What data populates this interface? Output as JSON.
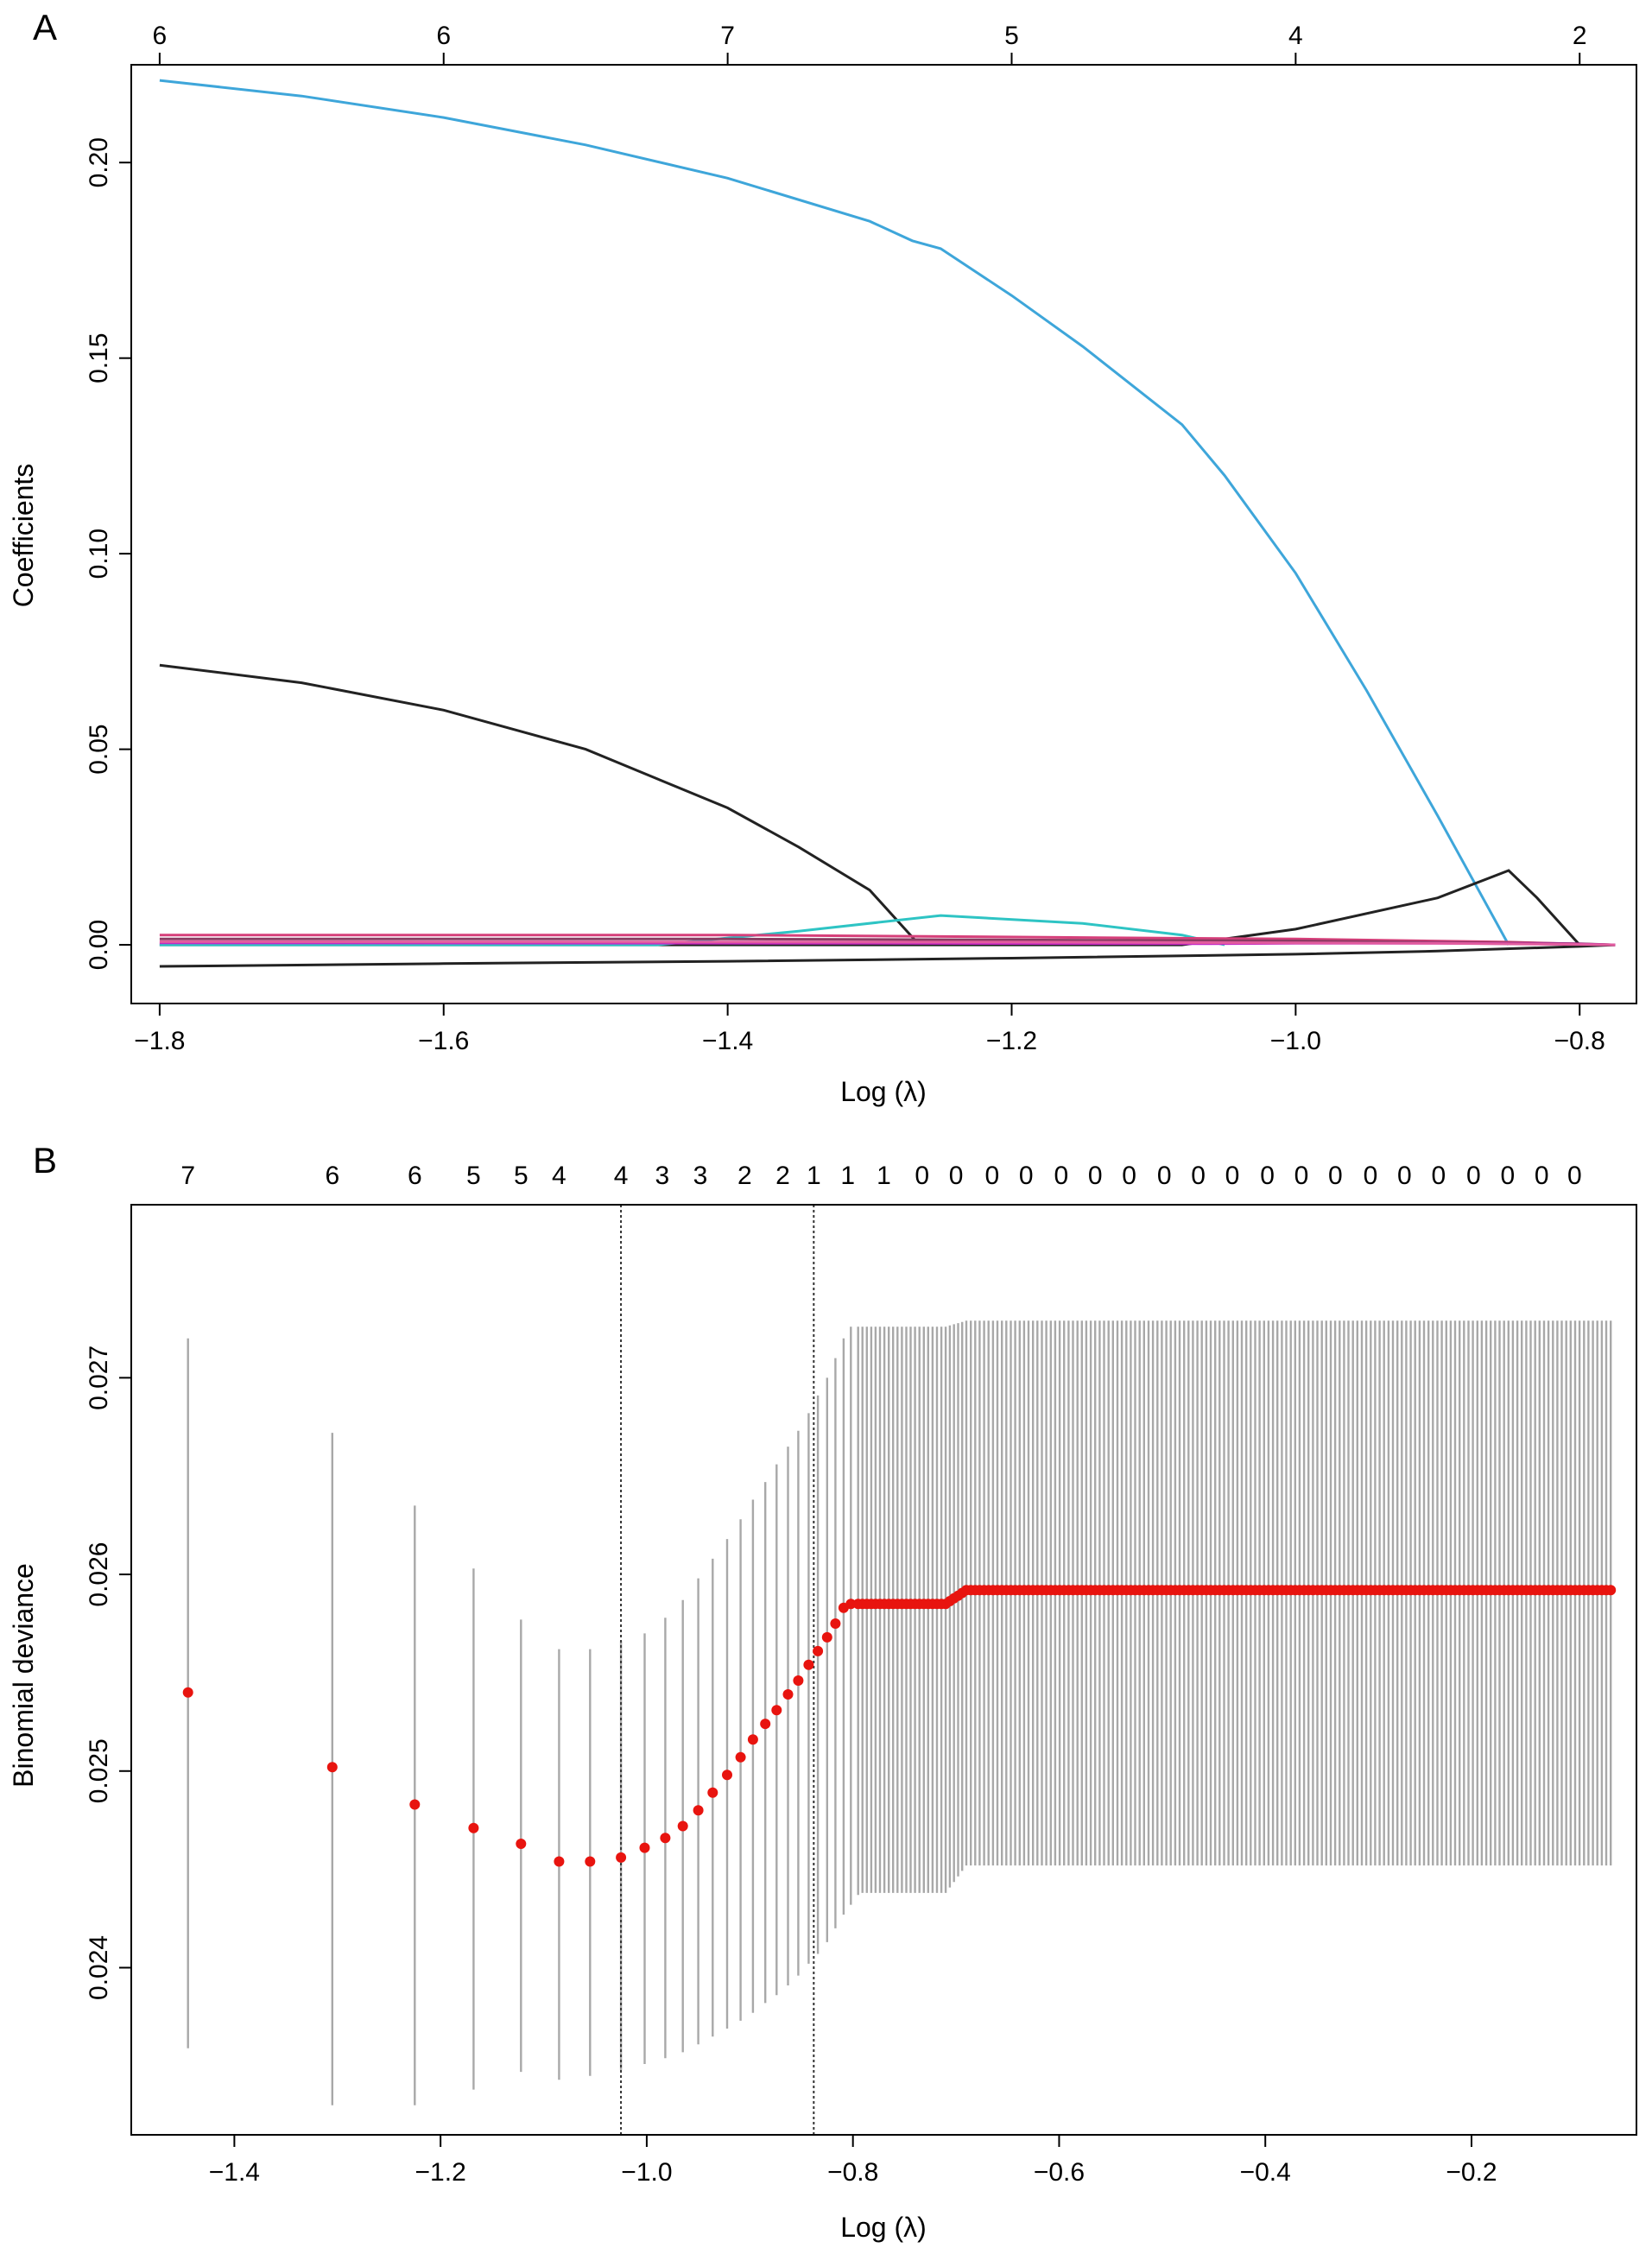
{
  "chart_data": [
    {
      "type": "line",
      "panel_label": "A",
      "xlabel": "Log (λ)",
      "ylabel": "Coefficients",
      "xlim": [
        -1.82,
        -0.76
      ],
      "ylim": [
        -0.015,
        0.225
      ],
      "x_ticks": [
        -1.8,
        -1.6,
        -1.4,
        -1.2,
        -1.0,
        -0.8
      ],
      "x_tick_labels": [
        "−1.8",
        "−1.6",
        "−1.4",
        "−1.2",
        "−1.0",
        "−0.8"
      ],
      "y_ticks": [
        0.0,
        0.05,
        0.1,
        0.15,
        0.2
      ],
      "y_tick_labels": [
        "0.00",
        "0.05",
        "0.10",
        "0.15",
        "0.20"
      ],
      "top_axis": {
        "ticks": [
          -1.8,
          -1.6,
          -1.4,
          -1.2,
          -1.0,
          -0.8
        ],
        "labels": [
          "6",
          "6",
          "7",
          "5",
          "4",
          "2"
        ]
      },
      "series": [
        {
          "color": "#3ea6da",
          "x": [
            -1.8,
            -1.7,
            -1.6,
            -1.5,
            -1.4,
            -1.3,
            -1.27,
            -1.25,
            -1.2,
            -1.15,
            -1.08,
            -1.05,
            -1.0,
            -0.95,
            -0.9,
            -0.85
          ],
          "y": [
            0.221,
            0.217,
            0.2115,
            0.2045,
            0.196,
            0.185,
            0.18,
            0.178,
            0.166,
            0.153,
            0.133,
            0.12,
            0.095,
            0.065,
            0.033,
            0.0
          ]
        },
        {
          "color": "#222222",
          "x": [
            -1.8,
            -1.7,
            -1.6,
            -1.5,
            -1.4,
            -1.35,
            -1.3,
            -1.265
          ],
          "y": [
            0.0715,
            0.067,
            0.06,
            0.05,
            0.035,
            0.025,
            0.014,
            0.0
          ]
        },
        {
          "color": "#222222",
          "x": [
            -1.8,
            -1.08,
            -1.0,
            -0.9,
            -0.85,
            -0.83,
            -0.8,
            -0.775
          ],
          "y": [
            0.0,
            0.0,
            0.004,
            0.012,
            0.019,
            0.012,
            0.0,
            0.0
          ]
        },
        {
          "color": "#222222",
          "x": [
            -1.8,
            -1.6,
            -1.4,
            -1.2,
            -1.0,
            -0.9,
            -0.8,
            -0.775
          ],
          "y": [
            -0.0055,
            -0.0048,
            -0.0042,
            -0.0034,
            -0.0024,
            -0.0016,
            -0.0004,
            0.0
          ]
        },
        {
          "color": "#2ec4c4",
          "x": [
            -1.8,
            -1.45,
            -1.35,
            -1.25,
            -1.15,
            -1.08,
            -1.05
          ],
          "y": [
            0.0,
            0.0,
            0.0035,
            0.0075,
            0.0055,
            0.0025,
            0.0
          ]
        },
        {
          "color": "#d63f7a",
          "x": [
            -1.8,
            -1.4,
            -1.0,
            -0.85,
            -0.775
          ],
          "y": [
            0.0025,
            0.0025,
            0.0015,
            0.0007,
            0.0
          ]
        },
        {
          "color": "#8b3a62",
          "x": [
            -1.8,
            -1.4,
            -1.0,
            -0.8,
            -0.775
          ],
          "y": [
            0.0015,
            0.0015,
            0.001,
            0.0003,
            0.0
          ]
        },
        {
          "color": "#c428c4",
          "x": [
            -1.8,
            -1.3,
            -1.06,
            -1.0,
            -0.9,
            -0.8,
            -0.775
          ],
          "y": [
            0.0005,
            0.0004,
            0.0003,
            0.0004,
            0.0004,
            0.0002,
            0.0
          ]
        },
        {
          "color": "#e25c9e",
          "x": [
            -1.8,
            -1.2,
            -0.9,
            -0.8,
            -0.775
          ],
          "y": [
            0.0008,
            0.0007,
            0.0004,
            0.0001,
            0.0
          ]
        }
      ]
    },
    {
      "type": "scatter",
      "panel_label": "B",
      "xlabel": "Log (λ)",
      "ylabel": "Binomial deviance",
      "xlim": [
        -1.5,
        -0.04
      ],
      "ylim": [
        0.02315,
        0.02788
      ],
      "x_ticks": [
        -1.4,
        -1.2,
        -1.0,
        -0.8,
        -0.6,
        -0.4,
        -0.2
      ],
      "x_tick_labels": [
        "−1.4",
        "−1.2",
        "−1.0",
        "−0.8",
        "−0.6",
        "−0.4",
        "−0.2"
      ],
      "y_ticks": [
        0.024,
        0.025,
        0.026,
        0.027
      ],
      "y_tick_labels": [
        "0.024",
        "0.025",
        "0.026",
        "0.027"
      ],
      "vlines": [
        -1.025,
        -0.838
      ],
      "point_color": "#e8140f",
      "errorbar_color": "#a8a8a8",
      "top_axis": {
        "positions": [
          -1.445,
          -1.305,
          -1.225,
          -1.168,
          -1.122,
          -1.085,
          -1.025,
          -0.985,
          -0.948,
          -0.905,
          -0.868,
          -0.838,
          -0.805,
          -0.77,
          -0.733,
          -0.7,
          -0.665,
          -0.632,
          -0.598,
          -0.565,
          -0.532,
          -0.498,
          -0.465,
          -0.432,
          -0.398,
          -0.365,
          -0.332,
          -0.298,
          -0.265,
          -0.232,
          -0.198,
          -0.165,
          -0.132,
          -0.1
        ],
        "labels": [
          "7",
          "6",
          "6",
          "5",
          "5",
          "4",
          "4",
          "3",
          "3",
          "2",
          "2",
          "1",
          "1",
          "1",
          "0",
          "0",
          "0",
          "0",
          "0",
          "0",
          "0",
          "0",
          "0",
          "0",
          "0",
          "0",
          "0",
          "0",
          "0",
          "0",
          "0",
          "0",
          "0",
          "0"
        ]
      },
      "points": {
        "x": [
          -1.445,
          -1.305,
          -1.225,
          -1.168,
          -1.122,
          -1.085,
          -1.055,
          -1.025,
          -1.002,
          -0.982,
          -0.965,
          -0.95,
          -0.936,
          -0.922,
          -0.909,
          -0.897,
          -0.885,
          -0.874,
          -0.863,
          -0.853,
          -0.843,
          -0.834,
          -0.825,
          -0.817,
          -0.809,
          -0.802,
          -0.795
        ],
        "y": [
          0.0254,
          0.02502,
          0.02483,
          0.02471,
          0.02463,
          0.02454,
          0.02454,
          0.02456,
          0.02461,
          0.02466,
          0.02472,
          0.0248,
          0.02489,
          0.02498,
          0.02507,
          0.02516,
          0.02524,
          0.02531,
          0.02539,
          0.02546,
          0.02554,
          0.02561,
          0.02568,
          0.02575,
          0.02583,
          0.02585,
          0.02585
        ],
        "lower": [
          0.02359,
          0.0233,
          0.0233,
          0.02338,
          0.02347,
          0.02343,
          0.02345,
          0.02348,
          0.02351,
          0.02354,
          0.02357,
          0.02361,
          0.02365,
          0.02369,
          0.02373,
          0.02377,
          0.02382,
          0.02386,
          0.02391,
          0.02396,
          0.02402,
          0.02407,
          0.02413,
          0.0242,
          0.02427,
          0.02432,
          0.02437
        ],
        "upper": [
          0.0272,
          0.02672,
          0.02635,
          0.02603,
          0.02577,
          0.02562,
          0.02562,
          0.02566,
          0.0257,
          0.02578,
          0.02587,
          0.02598,
          0.02608,
          0.02618,
          0.02628,
          0.02638,
          0.02647,
          0.02656,
          0.02665,
          0.02673,
          0.02682,
          0.02691,
          0.027,
          0.0271,
          0.0272,
          0.02726,
          0.02726
        ]
      },
      "plateau": {
        "segments": [
          {
            "x_from": -0.795,
            "x_to": -0.71,
            "y_from": 0.02585,
            "y_to": 0.02585,
            "lower_from": 0.02438,
            "lower_to": 0.02438,
            "upper_from": 0.02726,
            "upper_to": 0.02726
          },
          {
            "x_from": -0.71,
            "x_to": -0.69,
            "y_from": 0.02585,
            "y_to": 0.02592,
            "lower_from": 0.02438,
            "lower_to": 0.02452,
            "upper_from": 0.02726,
            "upper_to": 0.02729
          },
          {
            "x_from": -0.69,
            "x_to": -0.065,
            "y_from": 0.02592,
            "y_to": 0.02592,
            "lower_from": 0.02452,
            "lower_to": 0.02452,
            "upper_from": 0.02729,
            "upper_to": 0.02729
          }
        ]
      }
    }
  ]
}
